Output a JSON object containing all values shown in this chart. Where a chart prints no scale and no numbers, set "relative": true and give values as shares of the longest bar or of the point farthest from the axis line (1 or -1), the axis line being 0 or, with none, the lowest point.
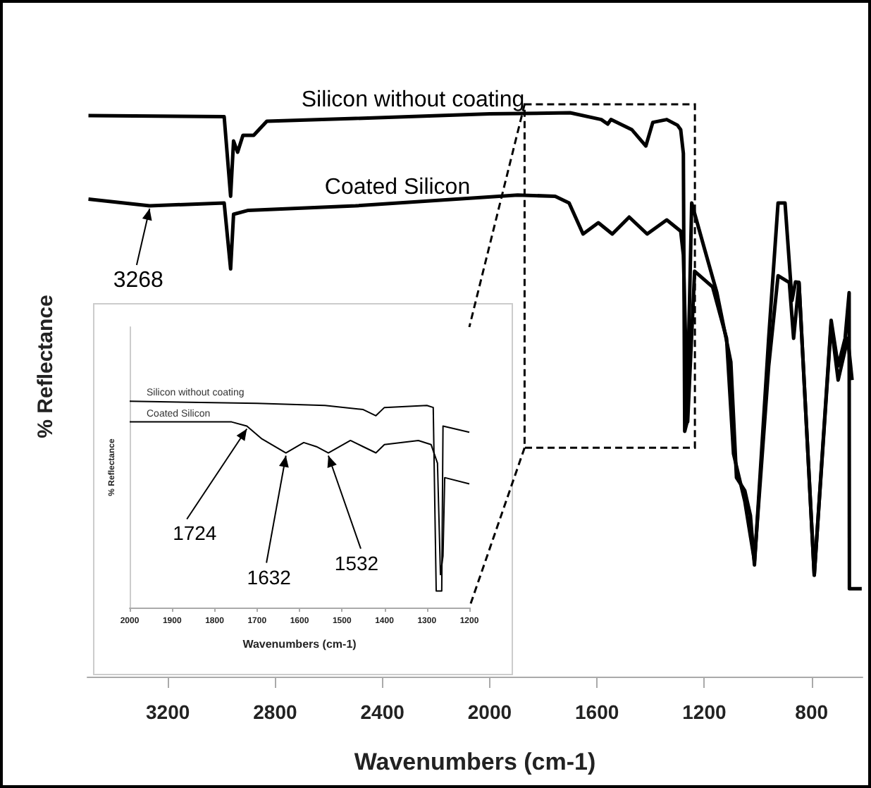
{
  "chart_data": [
    {
      "type": "line",
      "xlabel": "Wavenumbers (cm-1)",
      "ylabel": "% Reflectance",
      "xlim": [
        3500,
        610
      ],
      "xticks": [
        3200,
        2800,
        2400,
        2000,
        1600,
        1200,
        800
      ],
      "relative": true,
      "tick_labels": "x",
      "grid": false,
      "series": [
        {
          "name": "Silicon without coating",
          "color": "#000000",
          "x": [
            3496,
            2990,
            2966,
            2955,
            2940,
            2920,
            2880,
            2831,
            2500,
            2000,
            1700,
            1584,
            1560,
            1548,
            1470,
            1418,
            1392,
            1340,
            1300,
            1288,
            1278,
            1273,
            1265,
            1247,
            1200,
            1153,
            1101,
            1080,
            1049,
            1028,
            1013,
            960,
            925,
            899,
            873,
            860,
            847,
            790,
            727,
            701,
            675,
            660,
            659,
            613
          ],
          "values": [
            0.995,
            0.993,
            0.852,
            0.95,
            0.93,
            0.96,
            0.96,
            0.985,
            0.99,
            0.998,
            1.0,
            0.988,
            0.98,
            0.988,
            0.97,
            0.941,
            0.983,
            0.988,
            0.978,
            0.97,
            0.928,
            0.435,
            0.45,
            0.84,
            0.76,
            0.681,
            0.558,
            0.353,
            0.33,
            0.286,
            0.198,
            0.6,
            0.84,
            0.84,
            0.667,
            0.7,
            0.699,
            0.18,
            0.632,
            0.551,
            0.6,
            0.681,
            0.156,
            0.156
          ]
        },
        {
          "name": "Coated Silicon",
          "color": "#000000",
          "x": [
            3496,
            3268,
            2990,
            2966,
            2955,
            2900,
            2500,
            1896,
            1756,
            1704,
            1652,
            1595,
            1543,
            1480,
            1413,
            1340,
            1288,
            1278,
            1262,
            1236,
            1169,
            1117,
            1091,
            1049,
            1013,
            960,
            925,
            883,
            867,
            847,
            790,
            727,
            701,
            665,
            649
          ],
          "values": [
            0.847,
            0.835,
            0.84,
            0.723,
            0.82,
            0.827,
            0.835,
            0.854,
            0.852,
            0.84,
            0.785,
            0.805,
            0.785,
            0.815,
            0.785,
            0.81,
            0.79,
            0.748,
            0.452,
            0.719,
            0.691,
            0.6,
            0.395,
            0.311,
            0.205,
            0.55,
            0.711,
            0.699,
            0.6,
            0.699,
            0.18,
            0.625,
            0.526,
            0.6,
            0.526
          ]
        }
      ],
      "annotations": [
        {
          "text": "3268",
          "x": 3268,
          "y": 0.835
        }
      ]
    },
    {
      "type": "line",
      "xlabel": "Wavenumbers (cm-1)",
      "ylabel": "% Reflectance",
      "xlim": [
        2000,
        1200
      ],
      "xticks": [
        2000,
        1900,
        1800,
        1700,
        1600,
        1500,
        1400,
        1300,
        1200
      ],
      "relative": true,
      "tick_labels": "x",
      "grid": false,
      "series": [
        {
          "name": "Silicon without coating",
          "color": "#000000",
          "x": [
            2000,
            1700,
            1540,
            1450,
            1420,
            1400,
            1300,
            1285,
            1278,
            1265,
            1262,
            1200
          ],
          "values": [
            1.0,
            0.99,
            0.98,
            0.96,
            0.93,
            0.97,
            0.98,
            0.97,
            0.08,
            0.08,
            0.88,
            0.85
          ]
        },
        {
          "name": "Coated Silicon",
          "color": "#000000",
          "x": [
            2000,
            1760,
            1724,
            1690,
            1632,
            1590,
            1560,
            1532,
            1480,
            1450,
            1420,
            1400,
            1320,
            1290,
            1275,
            1268,
            1262,
            1258,
            1200
          ],
          "values": [
            0.9,
            0.9,
            0.88,
            0.82,
            0.75,
            0.8,
            0.78,
            0.75,
            0.81,
            0.78,
            0.75,
            0.79,
            0.81,
            0.79,
            0.7,
            0.16,
            0.25,
            0.63,
            0.6
          ]
        }
      ],
      "annotations": [
        {
          "text": "1724",
          "x": 1724,
          "y": 0.88
        },
        {
          "text": "1632",
          "x": 1632,
          "y": 0.75
        },
        {
          "text": "1532",
          "x": 1532,
          "y": 0.75
        }
      ]
    }
  ]
}
